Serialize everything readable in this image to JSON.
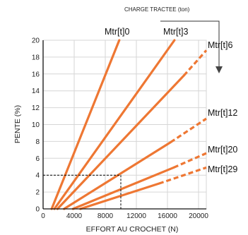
{
  "chart_data": {
    "type": "line",
    "title": "",
    "xlabel": "EFFORT AU CROCHET (N)",
    "ylabel": "PENTE (%)",
    "xlim": [
      0,
      21000
    ],
    "ylim": [
      0,
      20
    ],
    "xticks": [
      0,
      4000,
      8000,
      12000,
      16000,
      20000
    ],
    "xtick_labels": [
      "0",
      "4000",
      "8000",
      "12000",
      "16000",
      "20000"
    ],
    "yticks": [
      0,
      2,
      4,
      6,
      8,
      10,
      12,
      14,
      16,
      18,
      20
    ],
    "ytick_labels": [
      "0",
      "2",
      "4",
      "6",
      "8",
      "10",
      "12",
      "14",
      "16",
      "18",
      "20"
    ],
    "grid": true,
    "line_color": "#ee7733",
    "guide_color": "#000000",
    "charge_label": "CHARGE TRACTEE (ton)",
    "series": [
      {
        "name": "Mtr[t]0",
        "x": [
          1100,
          9800
        ],
        "y": [
          0,
          20
        ],
        "dashed_from": null
      },
      {
        "name": "Mtr[t]3",
        "x": [
          1450,
          16900
        ],
        "y": [
          0,
          20
        ],
        "dashed_from": null
      },
      {
        "name": "Mtr[t]6",
        "x": [
          1850,
          18100,
          21000
        ],
        "y": [
          0,
          15.8,
          18.8
        ],
        "dashed_from": 1
      },
      {
        "name": "Mtr[t]12",
        "x": [
          2700,
          16400,
          21000
        ],
        "y": [
          0,
          7.9,
          10.7
        ],
        "dashed_from": 1
      },
      {
        "name": "Mtr[t]20",
        "x": [
          3850,
          16800,
          21000
        ],
        "y": [
          0,
          4.9,
          6.6
        ],
        "dashed_from": 1
      },
      {
        "name": "Mtr[t]29",
        "x": [
          4800,
          14900,
          21000
        ],
        "y": [
          0,
          3.0,
          4.9
        ],
        "dashed_from": 1
      }
    ],
    "guide": {
      "x": 10000,
      "y": 4
    }
  }
}
